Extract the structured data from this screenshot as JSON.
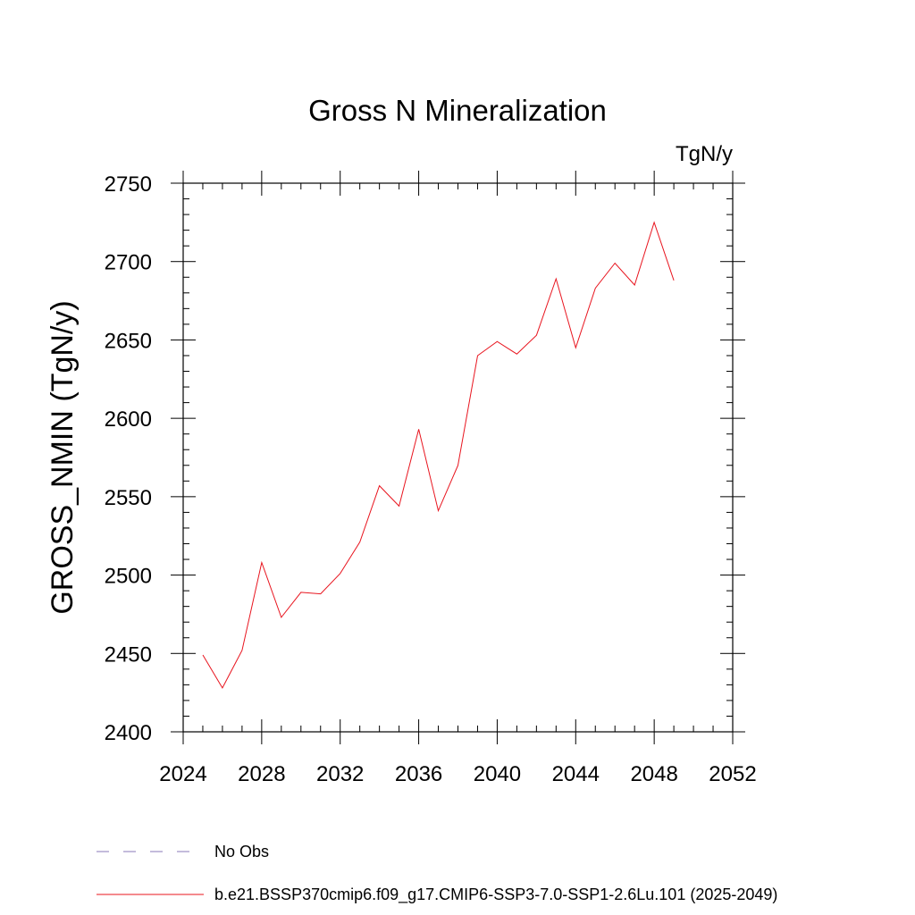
{
  "chart_data": {
    "type": "line",
    "title": "Gross N Mineralization",
    "units_label": "TgN/y",
    "ylabel": "GROSS_NMIN  (TgN/y)",
    "xlabel": "",
    "xlim": [
      2024,
      2052
    ],
    "ylim": [
      2400,
      2750
    ],
    "x_ticks": [
      2024,
      2028,
      2032,
      2036,
      2040,
      2044,
      2048,
      2052
    ],
    "y_ticks": [
      2400,
      2450,
      2500,
      2550,
      2600,
      2650,
      2700,
      2750
    ],
    "x_ticks_labels": [
      "2024",
      "2028",
      "2032",
      "2036",
      "2040",
      "2044",
      "2048",
      "2052"
    ],
    "y_ticks_labels": [
      "2400",
      "2450",
      "2500",
      "2550",
      "2600",
      "2650",
      "2700",
      "2750"
    ],
    "series": [
      {
        "name": "b.e21.BSSP370cmip6.f09_g17.CMIP6-SSP3-7.0-SSP1-2.6Lu.101 (2025-2049)",
        "color": "#e8141e",
        "x": [
          2025,
          2026,
          2027,
          2028,
          2029,
          2030,
          2031,
          2032,
          2033,
          2034,
          2035,
          2036,
          2037,
          2038,
          2039,
          2040,
          2041,
          2042,
          2043,
          2044,
          2045,
          2046,
          2047,
          2048,
          2049
        ],
        "y": [
          2449,
          2428,
          2452,
          2508,
          2473,
          2489,
          2488,
          2501,
          2521,
          2557,
          2544,
          2593,
          2541,
          2570,
          2640,
          2649,
          2641,
          2653,
          2689,
          2645,
          2683,
          2699,
          2685,
          2725,
          2688
        ]
      }
    ],
    "legend": [
      {
        "label": "No Obs",
        "color": "#8a7ab8",
        "style": "dashed"
      },
      {
        "label": "b.e21.BSSP370cmip6.f09_g17.CMIP6-SSP3-7.0-SSP1-2.6Lu.101 (2025-2049)",
        "color": "#e8141e",
        "style": "solid"
      }
    ]
  }
}
